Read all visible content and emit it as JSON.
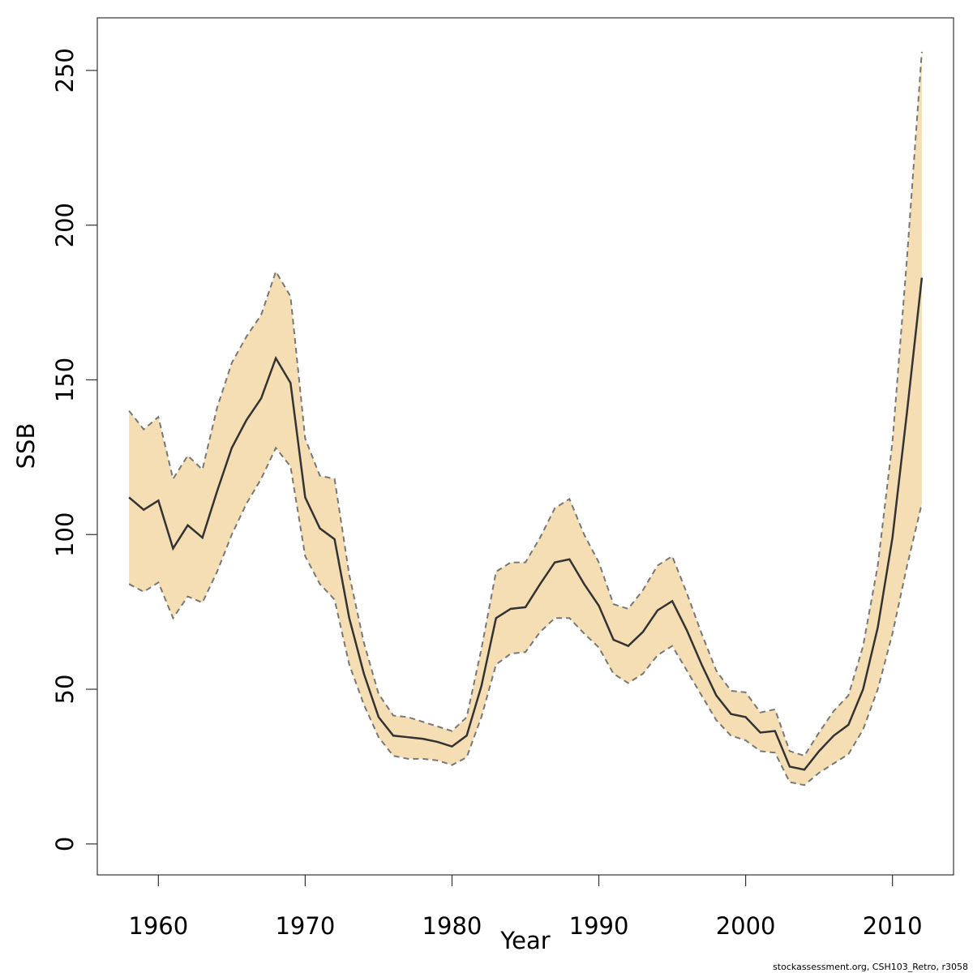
{
  "chart_data": {
    "type": "band-line",
    "xlabel": "Year",
    "ylabel": "SSB",
    "footnote": "stockassessment.org, CSH103_Retro, r3058",
    "x": [
      1958,
      1959,
      1960,
      1961,
      1962,
      1963,
      1964,
      1965,
      1966,
      1967,
      1968,
      1969,
      1970,
      1971,
      1972,
      1973,
      1974,
      1975,
      1976,
      1977,
      1978,
      1979,
      1980,
      1981,
      1982,
      1983,
      1984,
      1985,
      1986,
      1987,
      1988,
      1989,
      1990,
      1991,
      1992,
      1993,
      1994,
      1995,
      1996,
      1997,
      1998,
      1999,
      2000,
      2001,
      2002,
      2003,
      2004,
      2005,
      2006,
      2007,
      2008,
      2009,
      2010,
      2011,
      2012
    ],
    "values": [
      112,
      108,
      111,
      95.5,
      103,
      99,
      114,
      128,
      137,
      144,
      157,
      149,
      112,
      102,
      98.5,
      73,
      55,
      41,
      35,
      34.5,
      34,
      33,
      31.5,
      35,
      51,
      73,
      76,
      76.5,
      84,
      91,
      92,
      84,
      77,
      66,
      64,
      68.5,
      75.5,
      78.5,
      69,
      58,
      48,
      42,
      41,
      36,
      36.5,
      25,
      24,
      30,
      35,
      38.5,
      50,
      70,
      99,
      140,
      183
    ],
    "upper": [
      140,
      134,
      138,
      118,
      125.5,
      121,
      141,
      155.5,
      164,
      171,
      185,
      177,
      131,
      119,
      118,
      87,
      65,
      48.5,
      41.5,
      41,
      39.5,
      38,
      36.5,
      41,
      63,
      88,
      91,
      91,
      99,
      108.5,
      111.5,
      100,
      91,
      77.5,
      76,
      82,
      90,
      93,
      81,
      68,
      56,
      49.5,
      49,
      42.5,
      43.5,
      30,
      28.5,
      36,
      43,
      48,
      64,
      90,
      130,
      190,
      256
    ],
    "lower": [
      84,
      81.5,
      84.5,
      73,
      80,
      78,
      88,
      100,
      110,
      118,
      128,
      122,
      93,
      84,
      79,
      58,
      45,
      34.5,
      28.5,
      27.5,
      27.5,
      27,
      25.5,
      28,
      41,
      58,
      61.5,
      62,
      68.5,
      73,
      73,
      68,
      63.5,
      55,
      52,
      55,
      61,
      64,
      56,
      48,
      40,
      35,
      33.5,
      30,
      29.5,
      20,
      19,
      23,
      26,
      29,
      37,
      50,
      68,
      90,
      110
    ],
    "line_color": "#333333",
    "band_color": "#f5deb3",
    "bound_color": "#777777",
    "xlim": [
      1955.84,
      2014.16
    ],
    "ylim": [
      -10,
      267
    ],
    "xticks": [
      1960,
      1970,
      1980,
      1990,
      2000,
      2010
    ],
    "yticks": [
      0,
      50,
      100,
      150,
      200,
      250
    ]
  }
}
